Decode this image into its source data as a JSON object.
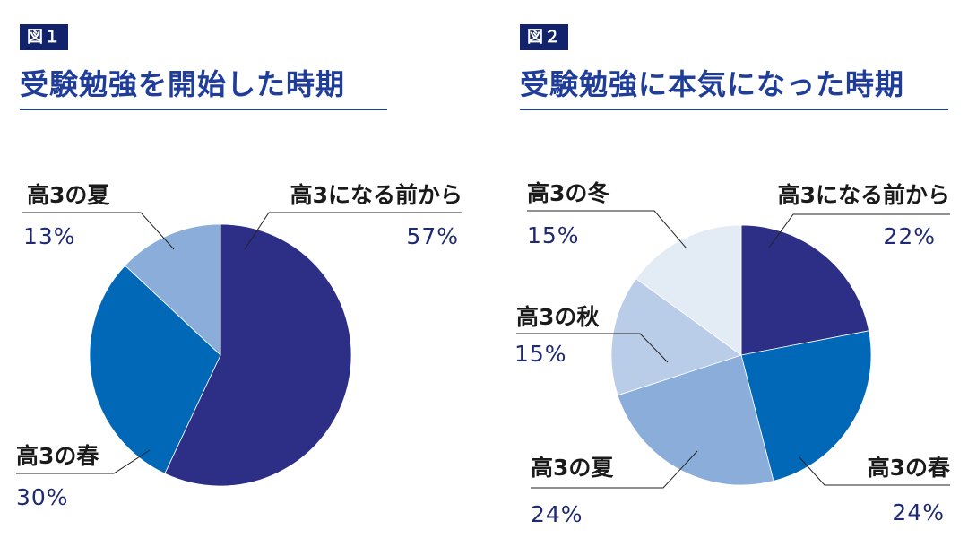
{
  "figures": [
    {
      "badge": "図１",
      "title": "受験勉強を開始した時期"
    },
    {
      "badge": "図２",
      "title": "受験勉強に本気になった時期"
    }
  ],
  "chart_data": [
    {
      "type": "pie",
      "title": "受験勉強を開始した時期",
      "slices": [
        {
          "label": "高3になる前から",
          "value": 57,
          "display": "57%",
          "color": "#2d2f86"
        },
        {
          "label": "高3の春",
          "value": 30,
          "display": "30%",
          "color": "#0068b7"
        },
        {
          "label": "高3の夏",
          "value": 13,
          "display": "13%",
          "color": "#8aadd9"
        }
      ]
    },
    {
      "type": "pie",
      "title": "受験勉強に本気になった時期",
      "slices": [
        {
          "label": "高3になる前から",
          "value": 22,
          "display": "22%",
          "color": "#2d2f86"
        },
        {
          "label": "高3の春",
          "value": 24,
          "display": "24%",
          "color": "#0068b7"
        },
        {
          "label": "高3の夏",
          "value": 24,
          "display": "24%",
          "color": "#8aadd9"
        },
        {
          "label": "高3の秋",
          "value": 15,
          "display": "15%",
          "color": "#b9cde9"
        },
        {
          "label": "高3の冬",
          "value": 15,
          "display": "15%",
          "color": "#e3ebf5"
        }
      ]
    }
  ]
}
